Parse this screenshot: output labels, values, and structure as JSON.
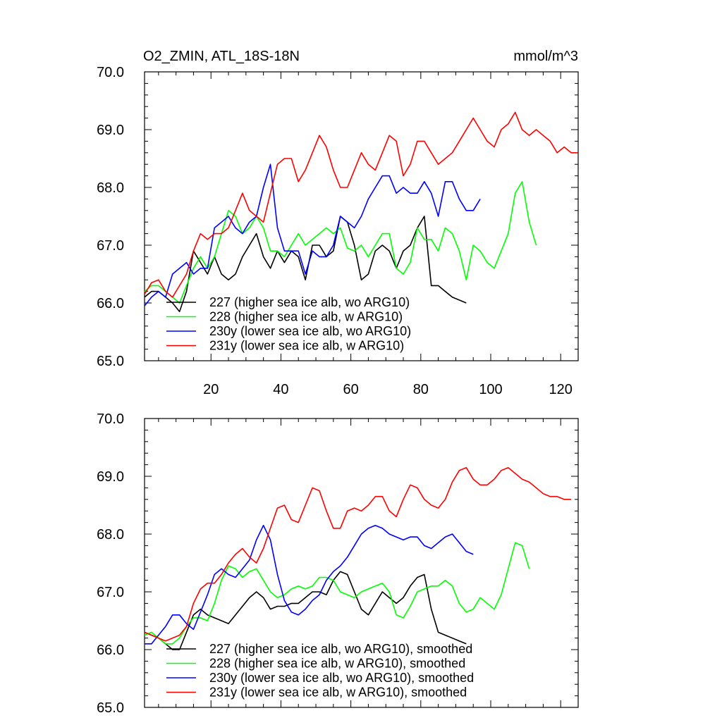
{
  "chart_data": [
    {
      "type": "line",
      "title": "O2_ZMIN, ATL_18S-18N",
      "units": "mmol/m^3",
      "ylim": [
        65.0,
        70.0
      ],
      "xlim": [
        1,
        125
      ],
      "y_tick_labels": [
        "65.0",
        "66.0",
        "67.0",
        "68.0",
        "69.0",
        "70.0"
      ],
      "x_tick_labels": [
        "20",
        "40",
        "60",
        "80",
        "100",
        "120"
      ],
      "legend_position": "lower-left",
      "series": [
        {
          "name": "227 (higher sea ice alb, wo ARG10)",
          "color": "#000000",
          "x": [
            1,
            3,
            5,
            7,
            9,
            11,
            13,
            15,
            17,
            19,
            21,
            23,
            25,
            27,
            29,
            31,
            33,
            35,
            37,
            39,
            41,
            43,
            45,
            47,
            49,
            51,
            53,
            55,
            57,
            59,
            61,
            63,
            65,
            67,
            69,
            71,
            73,
            75,
            77,
            79,
            81,
            83,
            85,
            87,
            89,
            91,
            93
          ],
          "y": [
            66.1,
            66.2,
            66.2,
            66.1,
            66.0,
            65.85,
            66.2,
            66.9,
            66.7,
            66.5,
            66.8,
            66.5,
            66.4,
            66.5,
            66.8,
            67.0,
            67.2,
            66.8,
            66.6,
            66.9,
            66.7,
            66.9,
            66.8,
            66.4,
            67.0,
            67.0,
            66.8,
            66.9,
            67.5,
            67.4,
            67.0,
            66.4,
            66.5,
            66.9,
            67.0,
            66.9,
            66.6,
            66.9,
            67.0,
            67.3,
            67.5,
            66.3,
            66.3,
            66.2,
            66.1,
            66.05,
            66.0
          ]
        },
        {
          "name": "228 (higher sea ice alb, w ARG10)",
          "color": "#00ff00",
          "x": [
            1,
            3,
            5,
            7,
            9,
            11,
            13,
            15,
            17,
            19,
            21,
            23,
            25,
            27,
            29,
            31,
            33,
            35,
            37,
            39,
            41,
            43,
            45,
            47,
            49,
            51,
            53,
            55,
            57,
            59,
            61,
            63,
            65,
            67,
            69,
            71,
            73,
            75,
            77,
            79,
            81,
            83,
            85,
            87,
            89,
            91,
            93,
            95,
            97,
            99,
            101,
            103,
            105,
            107,
            109,
            111,
            113
          ],
          "y": [
            66.2,
            66.3,
            66.3,
            66.2,
            66.1,
            66.0,
            66.3,
            66.6,
            66.8,
            66.6,
            66.8,
            67.2,
            67.6,
            67.5,
            67.2,
            67.3,
            67.5,
            67.3,
            66.9,
            66.9,
            66.8,
            67.0,
            67.2,
            67.0,
            67.1,
            67.2,
            67.3,
            67.2,
            67.3,
            66.95,
            66.9,
            67.0,
            66.8,
            67.0,
            67.2,
            67.2,
            66.6,
            66.5,
            66.7,
            67.3,
            67.1,
            67.1,
            66.9,
            67.3,
            67.2,
            66.9,
            66.4,
            67.0,
            66.9,
            66.7,
            66.6,
            66.9,
            67.2,
            67.9,
            68.1,
            67.4,
            67.0
          ]
        },
        {
          "name": "230y (lower sea ice alb, wo ARG10)",
          "color": "#0000ff",
          "x": [
            1,
            3,
            5,
            7,
            9,
            11,
            13,
            15,
            17,
            19,
            21,
            23,
            25,
            27,
            29,
            31,
            33,
            35,
            37,
            39,
            41,
            43,
            45,
            47,
            49,
            51,
            53,
            55,
            57,
            59,
            61,
            63,
            65,
            67,
            69,
            71,
            73,
            75,
            77,
            79,
            81,
            83,
            85,
            87,
            89,
            91,
            93,
            95,
            97
          ],
          "y": [
            65.95,
            66.1,
            66.2,
            66.1,
            66.5,
            66.6,
            66.7,
            66.5,
            66.6,
            66.6,
            67.3,
            67.4,
            67.5,
            67.3,
            67.2,
            67.4,
            67.5,
            68.0,
            68.4,
            67.3,
            66.9,
            66.9,
            66.9,
            66.5,
            66.9,
            66.8,
            66.8,
            67.0,
            67.5,
            67.4,
            67.3,
            67.5,
            67.8,
            68.0,
            68.2,
            68.2,
            67.9,
            68.0,
            67.9,
            67.9,
            68.1,
            67.9,
            67.5,
            68.1,
            68.1,
            67.8,
            67.6,
            67.6,
            67.8
          ]
        },
        {
          "name": "231y (lower sea ice alb, w ARG10)",
          "color": "#ff0000",
          "x": [
            1,
            3,
            5,
            7,
            9,
            11,
            13,
            15,
            17,
            19,
            21,
            23,
            25,
            27,
            29,
            31,
            33,
            35,
            37,
            39,
            41,
            43,
            45,
            47,
            49,
            51,
            53,
            55,
            57,
            59,
            61,
            63,
            65,
            67,
            69,
            71,
            73,
            75,
            77,
            79,
            81,
            83,
            85,
            87,
            89,
            91,
            93,
            95,
            97,
            99,
            101,
            103,
            105,
            107,
            109,
            111,
            113,
            115,
            117,
            119,
            121,
            123,
            125
          ],
          "y": [
            66.15,
            66.35,
            66.4,
            66.2,
            66.1,
            66.3,
            66.5,
            66.9,
            67.2,
            67.1,
            67.2,
            67.2,
            67.3,
            67.6,
            67.9,
            67.6,
            67.5,
            67.4,
            67.9,
            68.4,
            68.5,
            68.5,
            68.1,
            68.3,
            68.6,
            68.9,
            68.7,
            68.3,
            68.0,
            68.0,
            68.3,
            68.6,
            68.4,
            68.3,
            68.6,
            68.9,
            68.8,
            68.2,
            68.4,
            68.8,
            68.8,
            68.6,
            68.4,
            68.5,
            68.6,
            68.8,
            69.0,
            69.2,
            69.0,
            68.8,
            68.7,
            69.0,
            69.1,
            69.3,
            69.0,
            68.9,
            69.0,
            68.9,
            68.8,
            68.6,
            68.7,
            68.6,
            68.6
          ]
        }
      ]
    },
    {
      "type": "line",
      "ylim": [
        65.0,
        70.0
      ],
      "xlim": [
        1,
        125
      ],
      "y_tick_labels": [
        "65.0",
        "66.0",
        "67.0",
        "68.0",
        "69.0",
        "70.0"
      ],
      "legend_position": "lower-left",
      "series": [
        {
          "name": "227 (higher sea ice alb, wo ARG10), smoothed",
          "color": "#000000",
          "x": [
            1,
            3,
            5,
            7,
            9,
            11,
            13,
            15,
            17,
            19,
            21,
            23,
            25,
            27,
            29,
            31,
            33,
            35,
            37,
            39,
            41,
            43,
            45,
            47,
            49,
            51,
            53,
            55,
            57,
            59,
            61,
            63,
            65,
            67,
            69,
            71,
            73,
            75,
            77,
            79,
            81,
            83,
            85,
            87,
            89,
            91,
            93
          ],
          "y": [
            66.3,
            66.25,
            66.2,
            66.1,
            66.0,
            66.0,
            66.3,
            66.6,
            66.7,
            66.6,
            66.55,
            66.5,
            66.45,
            66.6,
            66.75,
            66.9,
            67.0,
            66.9,
            66.7,
            66.75,
            66.75,
            66.8,
            66.8,
            66.9,
            67.0,
            67.0,
            66.95,
            67.2,
            67.35,
            67.3,
            67.0,
            66.7,
            66.6,
            66.8,
            67.0,
            66.9,
            66.8,
            66.9,
            67.1,
            67.25,
            67.3,
            66.7,
            66.3,
            66.25,
            66.2,
            66.15,
            66.1
          ]
        },
        {
          "name": "228 (higher sea ice alb, w ARG10), smoothed",
          "color": "#00ff00",
          "x": [
            1,
            3,
            5,
            7,
            9,
            11,
            13,
            15,
            17,
            19,
            21,
            23,
            25,
            27,
            29,
            31,
            33,
            35,
            37,
            39,
            41,
            43,
            45,
            47,
            49,
            51,
            53,
            55,
            57,
            59,
            61,
            63,
            65,
            67,
            69,
            71,
            73,
            75,
            77,
            79,
            81,
            83,
            85,
            87,
            89,
            91,
            93,
            95,
            97,
            99,
            101,
            103,
            105,
            107,
            109,
            111
          ],
          "y": [
            66.25,
            66.3,
            66.2,
            66.1,
            66.1,
            66.2,
            66.4,
            66.55,
            66.55,
            66.5,
            66.8,
            67.2,
            67.45,
            67.4,
            67.25,
            67.35,
            67.4,
            67.2,
            67.0,
            66.9,
            66.95,
            67.05,
            67.1,
            67.05,
            67.1,
            67.25,
            67.25,
            67.2,
            67.0,
            66.95,
            66.9,
            67.0,
            67.05,
            67.1,
            67.15,
            67.0,
            66.6,
            66.55,
            66.75,
            67.0,
            67.05,
            67.1,
            67.1,
            67.2,
            67.1,
            66.8,
            66.65,
            66.7,
            66.9,
            66.8,
            66.7,
            66.95,
            67.4,
            67.85,
            67.8,
            67.4
          ]
        },
        {
          "name": "230y (lower sea ice alb, wo ARG10), smoothed",
          "color": "#0000ff",
          "x": [
            1,
            3,
            5,
            7,
            9,
            11,
            13,
            15,
            17,
            19,
            21,
            23,
            25,
            27,
            29,
            31,
            33,
            35,
            37,
            39,
            41,
            43,
            45,
            47,
            49,
            51,
            53,
            55,
            57,
            59,
            61,
            63,
            65,
            67,
            69,
            71,
            73,
            75,
            77,
            79,
            81,
            83,
            85,
            87,
            89,
            91,
            93,
            95
          ],
          "y": [
            66.1,
            66.1,
            66.25,
            66.4,
            66.6,
            66.6,
            66.45,
            66.35,
            66.65,
            66.95,
            67.3,
            67.4,
            67.3,
            67.25,
            67.4,
            67.55,
            67.9,
            68.15,
            67.9,
            67.3,
            66.85,
            66.65,
            66.6,
            66.7,
            66.85,
            66.95,
            67.2,
            67.35,
            67.45,
            67.6,
            67.8,
            68.0,
            68.1,
            68.15,
            68.1,
            68.0,
            67.95,
            67.9,
            67.95,
            67.95,
            67.8,
            67.75,
            67.85,
            67.95,
            68.0,
            67.85,
            67.7,
            67.65
          ]
        },
        {
          "name": "231y (lower sea ice alb, w ARG10), smoothed",
          "color": "#ff0000",
          "x": [
            1,
            3,
            5,
            7,
            9,
            11,
            13,
            15,
            17,
            19,
            21,
            23,
            25,
            27,
            29,
            31,
            33,
            35,
            37,
            39,
            41,
            43,
            45,
            47,
            49,
            51,
            53,
            55,
            57,
            59,
            61,
            63,
            65,
            67,
            69,
            71,
            73,
            75,
            77,
            79,
            81,
            83,
            85,
            87,
            89,
            91,
            93,
            95,
            97,
            99,
            101,
            103,
            105,
            107,
            109,
            111,
            113,
            115,
            117,
            119,
            121,
            123
          ],
          "y": [
            66.3,
            66.25,
            66.2,
            66.15,
            66.2,
            66.25,
            66.4,
            66.8,
            67.05,
            67.15,
            67.15,
            67.3,
            67.5,
            67.65,
            67.75,
            67.6,
            67.5,
            67.75,
            68.1,
            68.45,
            68.5,
            68.25,
            68.2,
            68.5,
            68.8,
            68.75,
            68.4,
            68.1,
            68.1,
            68.4,
            68.45,
            68.4,
            68.5,
            68.65,
            68.65,
            68.4,
            68.3,
            68.6,
            68.85,
            68.8,
            68.6,
            68.5,
            68.45,
            68.6,
            68.9,
            69.1,
            69.15,
            68.95,
            68.85,
            68.85,
            68.95,
            69.1,
            69.15,
            69.05,
            68.95,
            68.9,
            68.8,
            68.7,
            68.65,
            68.65,
            68.6,
            68.6
          ]
        }
      ]
    }
  ]
}
